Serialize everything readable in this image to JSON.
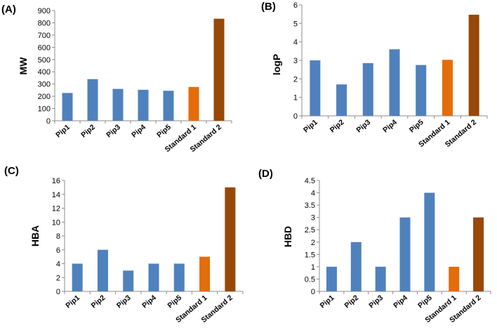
{
  "colors": {
    "pip": "#4F81BD",
    "standard1": "#E46C0A",
    "standard2": "#984807"
  },
  "chart_data": [
    {
      "type": "bar",
      "panel": "(A)",
      "ylabel": "MW",
      "categories": [
        "Pip1",
        "Pip2",
        "Pip3",
        "Pip4",
        "Pip5",
        "Standard 1",
        "Standard 2"
      ],
      "values": [
        227,
        340,
        260,
        253,
        245,
        276,
        833
      ],
      "ylim": [
        0,
        900
      ],
      "ticks": [
        0,
        100,
        200,
        300,
        400,
        500,
        600,
        700,
        800,
        900
      ],
      "tick_labels": [
        "0",
        "100",
        "200",
        "300",
        "400",
        "500",
        "600",
        "700",
        "800",
        "900"
      ]
    },
    {
      "type": "bar",
      "panel": "(B)",
      "ylabel": "logP",
      "categories": [
        "Pip1",
        "Pip2",
        "Pip3",
        "Pip4",
        "Pip5",
        "Standard 1",
        "Standard 2"
      ],
      "values": [
        3.0,
        1.7,
        2.85,
        3.6,
        2.75,
        3.03,
        5.47
      ],
      "ylim": [
        0,
        6
      ],
      "ticks": [
        0,
        1,
        2,
        3,
        4,
        5,
        6
      ],
      "tick_labels": [
        "0",
        "1",
        "2",
        "3",
        "4",
        "5",
        "6"
      ]
    },
    {
      "type": "bar",
      "panel": "(C)",
      "ylabel": "HBA",
      "categories": [
        "Pip1",
        "Pip2",
        "Pip3",
        "Pip4",
        "Pip5",
        "Standard 1",
        "Standard 2"
      ],
      "values": [
        4,
        6,
        3,
        4,
        4,
        5,
        15
      ],
      "ylim": [
        0,
        16
      ],
      "ticks": [
        0,
        2,
        4,
        6,
        8,
        10,
        12,
        14,
        16
      ],
      "tick_labels": [
        "0",
        "2",
        "4",
        "6",
        "8",
        "10",
        "12",
        "14",
        "16"
      ]
    },
    {
      "type": "bar",
      "panel": "(D)",
      "ylabel": "HBD",
      "categories": [
        "Pip1",
        "Pip2",
        "Pip3",
        "Pip4",
        "Pip5",
        "Standard 1",
        "Standard 2"
      ],
      "values": [
        1,
        2,
        1,
        3,
        4,
        1,
        3
      ],
      "ylim": [
        0,
        4.5
      ],
      "ticks": [
        0,
        0.5,
        1,
        1.5,
        2,
        2.5,
        3,
        3.5,
        4,
        4.5
      ],
      "tick_labels": [
        "0",
        "0.5",
        "1",
        "1.5",
        "2",
        "2.5",
        "3",
        "3.5",
        "4",
        "4.5"
      ]
    }
  ]
}
